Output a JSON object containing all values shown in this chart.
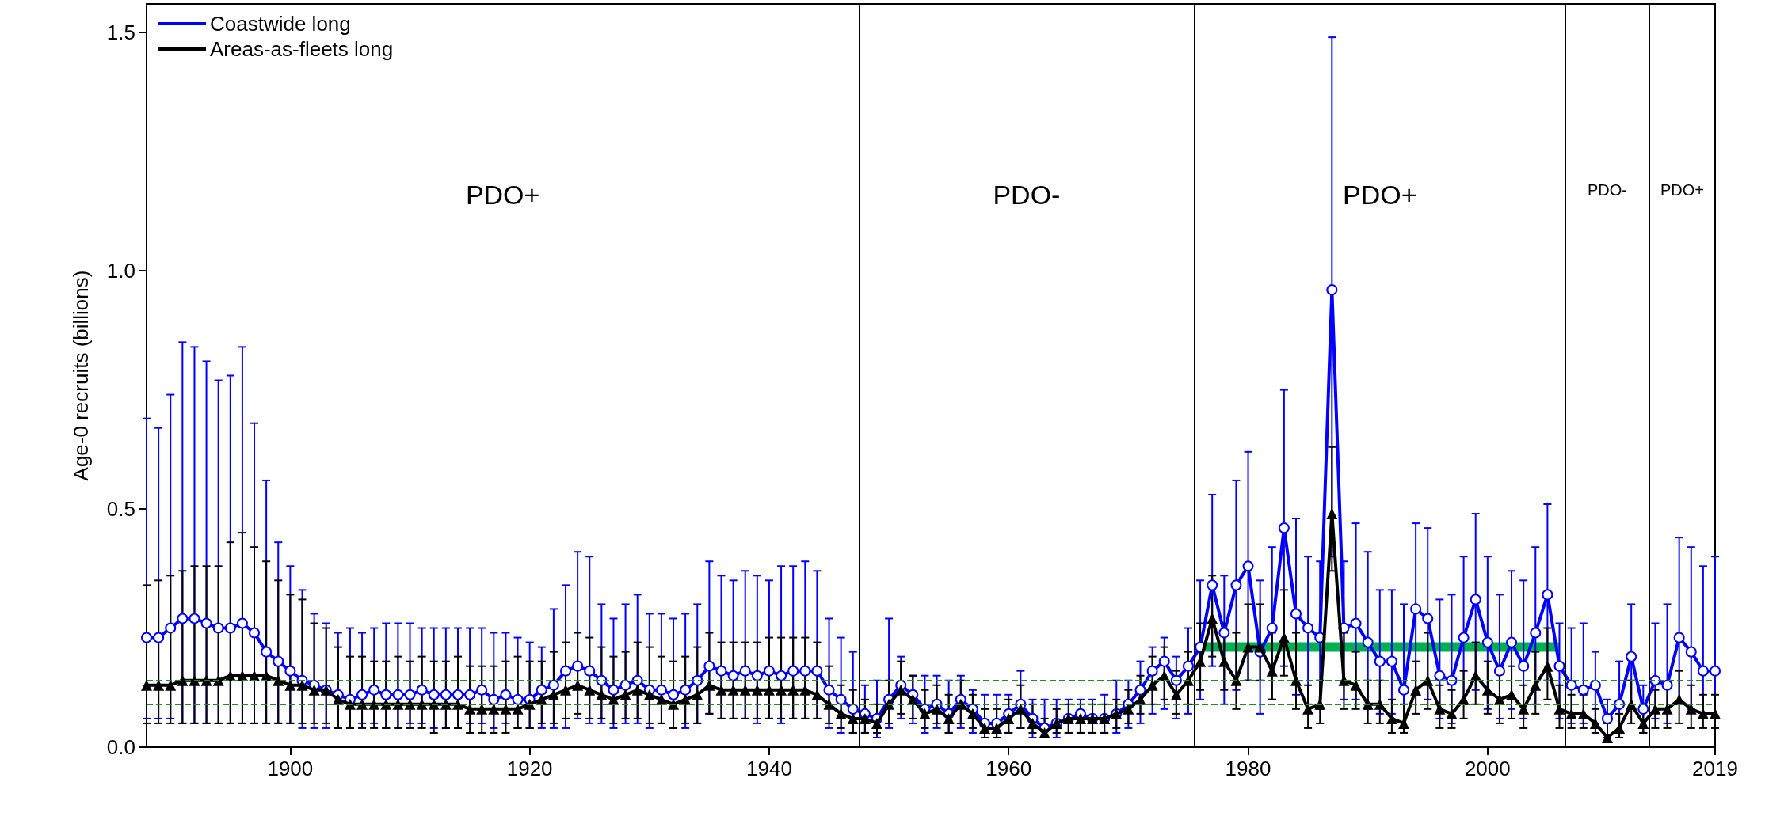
{
  "chart_data": {
    "type": "line",
    "ylabel": "Age-0 recruits (billions)",
    "x": [
      1888,
      1889,
      1890,
      1891,
      1892,
      1893,
      1894,
      1895,
      1896,
      1897,
      1898,
      1899,
      1900,
      1901,
      1902,
      1903,
      1904,
      1905,
      1906,
      1907,
      1908,
      1909,
      1910,
      1911,
      1912,
      1913,
      1914,
      1915,
      1916,
      1917,
      1918,
      1919,
      1920,
      1921,
      1922,
      1923,
      1924,
      1925,
      1926,
      1927,
      1928,
      1929,
      1930,
      1931,
      1932,
      1933,
      1934,
      1935,
      1936,
      1937,
      1938,
      1939,
      1940,
      1941,
      1942,
      1943,
      1944,
      1945,
      1946,
      1947,
      1948,
      1949,
      1950,
      1951,
      1952,
      1953,
      1954,
      1955,
      1956,
      1957,
      1958,
      1959,
      1960,
      1961,
      1962,
      1963,
      1964,
      1965,
      1966,
      1967,
      1968,
      1969,
      1970,
      1971,
      1972,
      1973,
      1974,
      1975,
      1976,
      1977,
      1978,
      1979,
      1980,
      1981,
      1982,
      1983,
      1984,
      1985,
      1986,
      1987,
      1988,
      1989,
      1990,
      1991,
      1992,
      1993,
      1994,
      1995,
      1996,
      1997,
      1998,
      1999,
      2000,
      2001,
      2002,
      2003,
      2004,
      2005,
      2006,
      2007,
      2008,
      2009,
      2010,
      2011,
      2012,
      2013,
      2014,
      2015,
      2016,
      2017,
      2018,
      2019
    ],
    "xlim": [
      1888,
      2019
    ],
    "xticks": [
      1900,
      1920,
      1940,
      1960,
      1980,
      2000,
      2019
    ],
    "ylim": [
      0,
      1.56
    ],
    "yticks": [
      {
        "value": 0,
        "label": "0.0"
      },
      {
        "value": 0.5,
        "label": "0.5"
      },
      {
        "value": 1,
        "label": "1.0"
      },
      {
        "value": 1.5,
        "label": "1.5"
      }
    ],
    "grid": false,
    "legend": "top left",
    "line_style": "solid",
    "series": [
      {
        "name": "Coastwide long",
        "color": "#0000ff",
        "marker": "circle",
        "values": [
          0.23,
          0.23,
          0.25,
          0.27,
          0.27,
          0.26,
          0.25,
          0.25,
          0.26,
          0.24,
          0.2,
          0.18,
          0.16,
          0.14,
          0.13,
          0.12,
          0.11,
          0.1,
          0.11,
          0.12,
          0.11,
          0.11,
          0.11,
          0.12,
          0.11,
          0.11,
          0.11,
          0.11,
          0.12,
          0.1,
          0.11,
          0.1,
          0.1,
          0.12,
          0.13,
          0.16,
          0.17,
          0.16,
          0.14,
          0.12,
          0.13,
          0.14,
          0.12,
          0.12,
          0.11,
          0.12,
          0.14,
          0.17,
          0.16,
          0.15,
          0.16,
          0.15,
          0.16,
          0.15,
          0.16,
          0.16,
          0.16,
          0.12,
          0.1,
          0.08,
          0.07,
          0.06,
          0.1,
          0.13,
          0.11,
          0.08,
          0.09,
          0.07,
          0.1,
          0.08,
          0.05,
          0.05,
          0.07,
          0.09,
          0.06,
          0.04,
          0.05,
          0.06,
          0.07,
          0.06,
          0.06,
          0.07,
          0.09,
          0.12,
          0.16,
          0.18,
          0.14,
          0.17,
          0.21,
          0.34,
          0.24,
          0.34,
          0.38,
          0.2,
          0.25,
          0.46,
          0.28,
          0.25,
          0.23,
          0.96,
          0.25,
          0.26,
          0.22,
          0.18,
          0.18,
          0.12,
          0.29,
          0.27,
          0.15,
          0.14,
          0.23,
          0.31,
          0.22,
          0.16,
          0.22,
          0.17,
          0.24,
          0.32,
          0.17,
          0.13,
          0.12,
          0.13,
          0.06,
          0.09,
          0.19,
          0.08,
          0.14,
          0.13,
          0.23,
          0.2,
          0.16,
          0.16
        ],
        "errors": [
          [
            0.06,
            0.69
          ],
          [
            0.06,
            0.67
          ],
          [
            0.06,
            0.74
          ],
          [
            0.05,
            0.85
          ],
          [
            0.05,
            0.84
          ],
          [
            0.05,
            0.81
          ],
          [
            0.05,
            0.77
          ],
          [
            0.05,
            0.78
          ],
          [
            0.05,
            0.84
          ],
          [
            0.05,
            0.68
          ],
          [
            0.05,
            0.56
          ],
          [
            0.05,
            0.43
          ],
          [
            0.05,
            0.38
          ],
          [
            0.04,
            0.33
          ],
          [
            0.04,
            0.28
          ],
          [
            0.04,
            0.26
          ],
          [
            0.04,
            0.24
          ],
          [
            0.04,
            0.25
          ],
          [
            0.05,
            0.24
          ],
          [
            0.05,
            0.25
          ],
          [
            0.04,
            0.26
          ],
          [
            0.04,
            0.26
          ],
          [
            0.05,
            0.26
          ],
          [
            0.05,
            0.25
          ],
          [
            0.04,
            0.25
          ],
          [
            0.04,
            0.25
          ],
          [
            0.04,
            0.25
          ],
          [
            0.05,
            0.25
          ],
          [
            0.05,
            0.25
          ],
          [
            0.04,
            0.24
          ],
          [
            0.05,
            0.24
          ],
          [
            0.04,
            0.23
          ],
          [
            0.04,
            0.22
          ],
          [
            0.04,
            0.21
          ],
          [
            0.04,
            0.29
          ],
          [
            0.04,
            0.34
          ],
          [
            0.06,
            0.41
          ],
          [
            0.05,
            0.4
          ],
          [
            0.05,
            0.3
          ],
          [
            0.04,
            0.27
          ],
          [
            0.05,
            0.3
          ],
          [
            0.05,
            0.32
          ],
          [
            0.04,
            0.28
          ],
          [
            0.05,
            0.28
          ],
          [
            0.04,
            0.27
          ],
          [
            0.04,
            0.28
          ],
          [
            0.05,
            0.3
          ],
          [
            0.07,
            0.39
          ],
          [
            0.06,
            0.36
          ],
          [
            0.06,
            0.35
          ],
          [
            0.06,
            0.37
          ],
          [
            0.05,
            0.36
          ],
          [
            0.06,
            0.35
          ],
          [
            0.05,
            0.38
          ],
          [
            0.06,
            0.38
          ],
          [
            0.06,
            0.39
          ],
          [
            0.06,
            0.37
          ],
          [
            0.04,
            0.27
          ],
          [
            0.03,
            0.23
          ],
          [
            0.03,
            0.2
          ],
          [
            0.03,
            0.13
          ],
          [
            0.02,
            0.14
          ],
          [
            0.04,
            0.27
          ],
          [
            0.06,
            0.19
          ],
          [
            0.05,
            0.15
          ],
          [
            0.03,
            0.15
          ],
          [
            0.04,
            0.15
          ],
          [
            0.03,
            0.14
          ],
          [
            0.04,
            0.15
          ],
          [
            0.03,
            0.12
          ],
          [
            0.02,
            0.11
          ],
          [
            0.02,
            0.11
          ],
          [
            0.03,
            0.11
          ],
          [
            0.04,
            0.16
          ],
          [
            0.02,
            0.1
          ],
          [
            0.02,
            0.1
          ],
          [
            0.02,
            0.1
          ],
          [
            0.03,
            0.1
          ],
          [
            0.03,
            0.1
          ],
          [
            0.03,
            0.1
          ],
          [
            0.03,
            0.11
          ],
          [
            0.03,
            0.14
          ],
          [
            0.04,
            0.14
          ],
          [
            0.05,
            0.18
          ],
          [
            0.07,
            0.21
          ],
          [
            0.08,
            0.23
          ],
          [
            0.06,
            0.19
          ],
          [
            0.07,
            0.25
          ],
          [
            0.1,
            0.35
          ],
          [
            0.17,
            0.53
          ],
          [
            0.09,
            0.36
          ],
          [
            0.12,
            0.56
          ],
          [
            0.14,
            0.62
          ],
          [
            0.07,
            0.35
          ],
          [
            0.1,
            0.42
          ],
          [
            0.17,
            0.75
          ],
          [
            0.11,
            0.48
          ],
          [
            0.09,
            0.4
          ],
          [
            0.08,
            0.39
          ],
          [
            0.4,
            1.49
          ],
          [
            0.1,
            0.39
          ],
          [
            0.1,
            0.47
          ],
          [
            0.08,
            0.41
          ],
          [
            0.07,
            0.33
          ],
          [
            0.07,
            0.33
          ],
          [
            0.04,
            0.3
          ],
          [
            0.11,
            0.47
          ],
          [
            0.1,
            0.46
          ],
          [
            0.06,
            0.31
          ],
          [
            0.05,
            0.32
          ],
          [
            0.09,
            0.4
          ],
          [
            0.12,
            0.49
          ],
          [
            0.08,
            0.4
          ],
          [
            0.06,
            0.32
          ],
          [
            0.08,
            0.37
          ],
          [
            0.06,
            0.35
          ],
          [
            0.09,
            0.42
          ],
          [
            0.14,
            0.51
          ],
          [
            0.06,
            0.26
          ],
          [
            0.05,
            0.25
          ],
          [
            0.05,
            0.26
          ],
          [
            0.05,
            0.2
          ],
          [
            0.02,
            0.1
          ],
          [
            0.03,
            0.18
          ],
          [
            0.08,
            0.3
          ],
          [
            0.03,
            0.13
          ],
          [
            0.06,
            0.26
          ],
          [
            0.05,
            0.3
          ],
          [
            0.09,
            0.44
          ],
          [
            0.08,
            0.42
          ],
          [
            0.06,
            0.38
          ],
          [
            0.06,
            0.4
          ]
        ]
      },
      {
        "name": "Areas-as-fleets long",
        "color": "#000000",
        "marker": "triangle",
        "values": [
          0.13,
          0.13,
          0.13,
          0.14,
          0.14,
          0.14,
          0.14,
          0.15,
          0.15,
          0.15,
          0.15,
          0.14,
          0.13,
          0.13,
          0.12,
          0.12,
          0.1,
          0.09,
          0.09,
          0.09,
          0.09,
          0.09,
          0.09,
          0.09,
          0.09,
          0.09,
          0.09,
          0.08,
          0.08,
          0.08,
          0.08,
          0.08,
          0.09,
          0.1,
          0.11,
          0.12,
          0.13,
          0.12,
          0.11,
          0.1,
          0.11,
          0.12,
          0.11,
          0.1,
          0.09,
          0.1,
          0.11,
          0.13,
          0.12,
          0.12,
          0.12,
          0.12,
          0.12,
          0.12,
          0.12,
          0.12,
          0.11,
          0.09,
          0.07,
          0.06,
          0.06,
          0.05,
          0.09,
          0.12,
          0.1,
          0.07,
          0.08,
          0.06,
          0.09,
          0.07,
          0.04,
          0.04,
          0.06,
          0.08,
          0.05,
          0.03,
          0.05,
          0.06,
          0.06,
          0.06,
          0.06,
          0.07,
          0.08,
          0.1,
          0.13,
          0.15,
          0.11,
          0.14,
          0.18,
          0.27,
          0.18,
          0.14,
          0.21,
          0.21,
          0.16,
          0.23,
          0.14,
          0.08,
          0.09,
          0.49,
          0.14,
          0.13,
          0.09,
          0.09,
          0.06,
          0.05,
          0.12,
          0.14,
          0.08,
          0.07,
          0.1,
          0.15,
          0.12,
          0.1,
          0.11,
          0.08,
          0.13,
          0.17,
          0.08,
          0.07,
          0.07,
          0.05,
          0.02,
          0.04,
          0.09,
          0.05,
          0.08,
          0.08,
          0.1,
          0.08,
          0.07,
          0.07
        ],
        "errors": [
          [
            0.05,
            0.34
          ],
          [
            0.05,
            0.35
          ],
          [
            0.05,
            0.36
          ],
          [
            0.05,
            0.37
          ],
          [
            0.05,
            0.38
          ],
          [
            0.05,
            0.38
          ],
          [
            0.05,
            0.38
          ],
          [
            0.05,
            0.43
          ],
          [
            0.05,
            0.45
          ],
          [
            0.05,
            0.42
          ],
          [
            0.05,
            0.39
          ],
          [
            0.05,
            0.35
          ],
          [
            0.05,
            0.32
          ],
          [
            0.05,
            0.31
          ],
          [
            0.05,
            0.26
          ],
          [
            0.05,
            0.25
          ],
          [
            0.04,
            0.21
          ],
          [
            0.04,
            0.19
          ],
          [
            0.04,
            0.19
          ],
          [
            0.04,
            0.18
          ],
          [
            0.04,
            0.18
          ],
          [
            0.04,
            0.19
          ],
          [
            0.04,
            0.18
          ],
          [
            0.04,
            0.19
          ],
          [
            0.03,
            0.18
          ],
          [
            0.04,
            0.18
          ],
          [
            0.04,
            0.19
          ],
          [
            0.03,
            0.17
          ],
          [
            0.03,
            0.17
          ],
          [
            0.03,
            0.17
          ],
          [
            0.03,
            0.18
          ],
          [
            0.04,
            0.19
          ],
          [
            0.04,
            0.18
          ],
          [
            0.05,
            0.18
          ],
          [
            0.05,
            0.2
          ],
          [
            0.06,
            0.22
          ],
          [
            0.07,
            0.24
          ],
          [
            0.06,
            0.23
          ],
          [
            0.06,
            0.21
          ],
          [
            0.05,
            0.19
          ],
          [
            0.06,
            0.2
          ],
          [
            0.06,
            0.22
          ],
          [
            0.05,
            0.21
          ],
          [
            0.05,
            0.19
          ],
          [
            0.04,
            0.18
          ],
          [
            0.05,
            0.19
          ],
          [
            0.05,
            0.21
          ],
          [
            0.07,
            0.24
          ],
          [
            0.06,
            0.22
          ],
          [
            0.06,
            0.22
          ],
          [
            0.06,
            0.22
          ],
          [
            0.06,
            0.22
          ],
          [
            0.06,
            0.23
          ],
          [
            0.06,
            0.23
          ],
          [
            0.06,
            0.23
          ],
          [
            0.06,
            0.23
          ],
          [
            0.06,
            0.22
          ],
          [
            0.05,
            0.17
          ],
          [
            0.04,
            0.13
          ],
          [
            0.03,
            0.12
          ],
          [
            0.03,
            0.1
          ],
          [
            0.03,
            0.09
          ],
          [
            0.05,
            0.14
          ],
          [
            0.07,
            0.18
          ],
          [
            0.06,
            0.15
          ],
          [
            0.04,
            0.12
          ],
          [
            0.05,
            0.13
          ],
          [
            0.03,
            0.11
          ],
          [
            0.05,
            0.14
          ],
          [
            0.04,
            0.11
          ],
          [
            0.02,
            0.08
          ],
          [
            0.02,
            0.08
          ],
          [
            0.03,
            0.1
          ],
          [
            0.04,
            0.13
          ],
          [
            0.03,
            0.09
          ],
          [
            0.02,
            0.06
          ],
          [
            0.03,
            0.08
          ],
          [
            0.03,
            0.09
          ],
          [
            0.03,
            0.09
          ],
          [
            0.03,
            0.09
          ],
          [
            0.03,
            0.09
          ],
          [
            0.04,
            0.1
          ],
          [
            0.05,
            0.12
          ],
          [
            0.07,
            0.15
          ],
          [
            0.09,
            0.19
          ],
          [
            0.1,
            0.21
          ],
          [
            0.07,
            0.16
          ],
          [
            0.09,
            0.2
          ],
          [
            0.12,
            0.26
          ],
          [
            0.19,
            0.36
          ],
          [
            0.12,
            0.26
          ],
          [
            0.08,
            0.24
          ],
          [
            0.14,
            0.3
          ],
          [
            0.14,
            0.3
          ],
          [
            0.1,
            0.24
          ],
          [
            0.15,
            0.33
          ],
          [
            0.08,
            0.24
          ],
          [
            0.04,
            0.13
          ],
          [
            0.05,
            0.14
          ],
          [
            0.37,
            0.63
          ],
          [
            0.08,
            0.24
          ],
          [
            0.08,
            0.2
          ],
          [
            0.05,
            0.14
          ],
          [
            0.05,
            0.14
          ],
          [
            0.03,
            0.1
          ],
          [
            0.03,
            0.09
          ],
          [
            0.07,
            0.18
          ],
          [
            0.08,
            0.24
          ],
          [
            0.04,
            0.13
          ],
          [
            0.04,
            0.12
          ],
          [
            0.06,
            0.16
          ],
          [
            0.09,
            0.22
          ],
          [
            0.07,
            0.18
          ],
          [
            0.05,
            0.16
          ],
          [
            0.06,
            0.17
          ],
          [
            0.04,
            0.13
          ],
          [
            0.07,
            0.2
          ],
          [
            0.1,
            0.25
          ],
          [
            0.04,
            0.13
          ],
          [
            0.04,
            0.11
          ],
          [
            0.04,
            0.11
          ],
          [
            0.03,
            0.08
          ],
          [
            0.01,
            0.05
          ],
          [
            0.02,
            0.07
          ],
          [
            0.05,
            0.14
          ],
          [
            0.03,
            0.09
          ],
          [
            0.04,
            0.12
          ],
          [
            0.04,
            0.13
          ],
          [
            0.05,
            0.16
          ],
          [
            0.04,
            0.13
          ],
          [
            0.04,
            0.11
          ],
          [
            0.04,
            0.11
          ]
        ]
      },
      {
        "type": "line",
        "color": "#00b050",
        "marker": "none",
        "x": [
          1976,
          2006
        ],
        "values": [
          0.21,
          0.21
        ]
      }
    ],
    "ref_lines": [
      {
        "axis": "x",
        "value": 1947.5,
        "color": "#000000",
        "line_style": "solid"
      },
      {
        "axis": "x",
        "value": 1975.5,
        "color": "#000000",
        "line_style": "solid"
      },
      {
        "axis": "x",
        "value": 2006.5,
        "color": "#000000",
        "line_style": "solid"
      },
      {
        "axis": "x",
        "value": 2013.5,
        "color": "#000000",
        "line_style": "solid"
      },
      {
        "axis": "y",
        "value": 0.135,
        "color": "#228b22",
        "line_style": "dashed"
      },
      {
        "axis": "y",
        "value": 0.085,
        "color": "#228b22",
        "line_style": "dashed"
      }
    ],
    "annotations": [
      "PDO+",
      "PDO-",
      "PDO+",
      "PDO-",
      "PDO+"
    ]
  }
}
